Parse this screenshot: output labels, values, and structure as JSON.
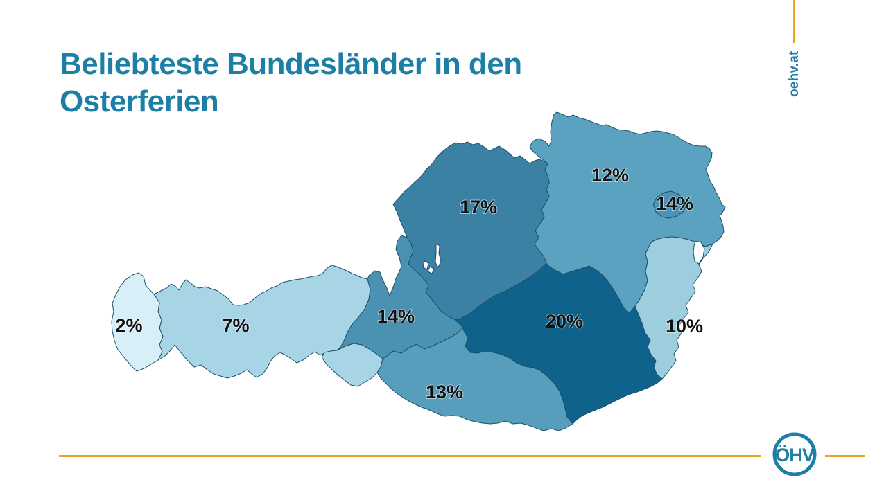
{
  "title": "Beliebteste Bundesländer in den Osterferien",
  "branding": {
    "website": "oehv.at",
    "logo_text": "ÖHV"
  },
  "colors": {
    "title_text": "#1d7ea6",
    "accent_line": "#e7a61e",
    "label_text": "#111111",
    "region_border": "#1d4f6b",
    "lake_fill": "#ffffff",
    "logo": "#1d7ea6"
  },
  "chart_data": {
    "type": "heatmap",
    "subtype": "choropleth-map",
    "map": "Austria Bundesländer",
    "title": "Beliebteste Bundesländer in den Osterferien",
    "unit": "%",
    "regions": [
      {
        "name": "Vorarlberg",
        "value": 2,
        "label": "2%",
        "color": "#d9eff8"
      },
      {
        "name": "Tirol",
        "value": 7,
        "label": "7%",
        "color": "#a7d5e6"
      },
      {
        "name": "Salzburg",
        "value": 14,
        "label": "14%",
        "color": "#4b92b2"
      },
      {
        "name": "Oberösterreich",
        "value": 17,
        "label": "17%",
        "color": "#3b81a4"
      },
      {
        "name": "Niederösterreich",
        "value": 12,
        "label": "12%",
        "color": "#5ba2c0"
      },
      {
        "name": "Wien",
        "value": 14,
        "label": "14%",
        "color": "#4a93b4"
      },
      {
        "name": "Burgenland",
        "value": 10,
        "label": "10%",
        "color": "#9ccede"
      },
      {
        "name": "Steiermark",
        "value": 20,
        "label": "20%",
        "color": "#0e628b"
      },
      {
        "name": "Kärnten",
        "value": 13,
        "label": "13%",
        "color": "#579dbc"
      }
    ]
  }
}
